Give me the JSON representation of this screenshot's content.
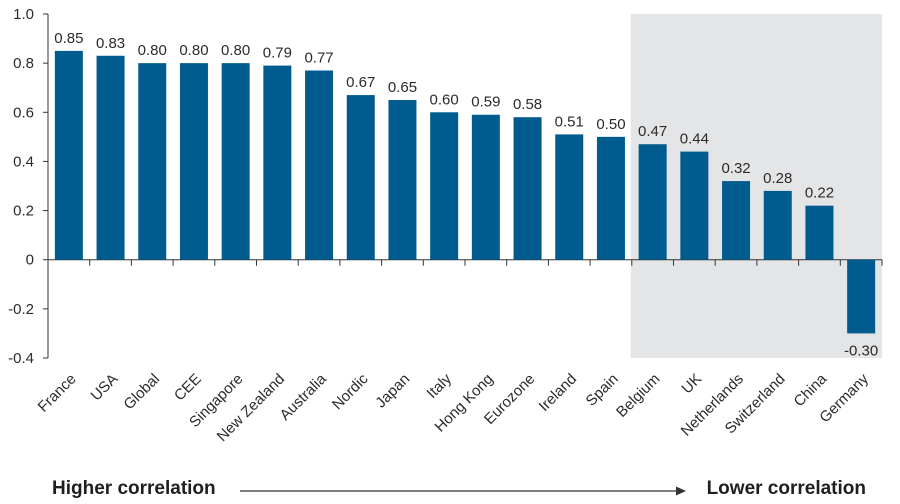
{
  "chart_data": {
    "type": "bar",
    "categories": [
      "France",
      "USA",
      "Global",
      "CEE",
      "Singapore",
      "New Zealand",
      "Australia",
      "Nordic",
      "Japan",
      "Italy",
      "Hong Kong",
      "Eurozone",
      "Ireland",
      "Spain",
      "Belgium",
      "UK",
      "Netherlands",
      "Switzerland",
      "China",
      "Germany"
    ],
    "values": [
      0.85,
      0.83,
      0.8,
      0.8,
      0.8,
      0.79,
      0.77,
      0.67,
      0.65,
      0.6,
      0.59,
      0.58,
      0.51,
      0.5,
      0.47,
      0.44,
      0.32,
      0.28,
      0.22,
      -0.3
    ],
    "data_labels": [
      "0.85",
      "0.83",
      "0.80",
      "0.80",
      "0.80",
      "0.79",
      "0.77",
      "0.67",
      "0.65",
      "0.60",
      "0.59",
      "0.58",
      "0.51",
      "0.50",
      "0.47",
      "0.44",
      "0.32",
      "0.28",
      "0.22",
      "-0.30"
    ],
    "y_ticks": [
      "1.0",
      "0.8",
      "0.6",
      "0.4",
      "0.2",
      "0",
      "-0.2",
      "-0.4"
    ],
    "ylim": [
      -0.4,
      1.0
    ],
    "bar_color": "#005b8e",
    "highlight_region": {
      "from_category": "Belgium",
      "to_category": "Germany",
      "color": "#e4e5e7"
    },
    "grid": false,
    "title": "",
    "xlabel": "",
    "ylabel": ""
  },
  "footer": {
    "left_label": "Higher correlation",
    "right_label": "Lower correlation"
  }
}
